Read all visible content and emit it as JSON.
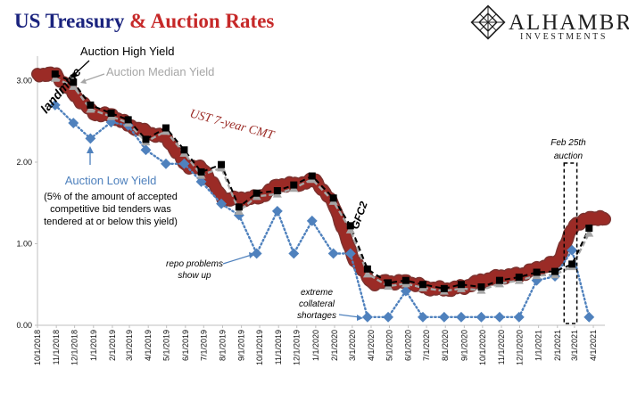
{
  "title": {
    "part1": "US Treasury ",
    "part2": "& Auction Rates",
    "color1": "#1a237e",
    "color2": "#c62828"
  },
  "logo": {
    "name": "ALHAMBRA",
    "sub": "INVESTMENTS"
  },
  "colors": {
    "cmt": "#9b2b26",
    "cmt_edge": "#6e1c18",
    "high": "#000000",
    "median": "#a6a6a6",
    "low": "#4f81bd",
    "low_text": "#4f81bd"
  },
  "annotations": {
    "auction_high": "Auction High Yield",
    "auction_median": "Auction Median Yield",
    "auction_low": "Auction Low Yield",
    "low_note_1": "(5% of the amount of accepted",
    "low_note_2": "competitive bid tenders was",
    "low_note_3": "tendered at or below this yield)",
    "ust": "UST 7-year CMT",
    "landmine": "landmine",
    "gfc2": "GFC2",
    "repo_1": "repo problems",
    "repo_2": "show up",
    "coll_1": "extreme",
    "coll_2": "collateral",
    "coll_3": "shortages",
    "feb_1": "Feb 25th",
    "feb_2": "auction"
  },
  "chart_data": {
    "type": "line",
    "ylim": [
      0,
      3.3
    ],
    "yticks": [
      "0.00",
      "1.00",
      "2.00",
      "3.00"
    ],
    "xlim": [
      "2018-10-01",
      "2021-04-20"
    ],
    "xticks": [
      "10/1/2018",
      "11/1/2018",
      "12/1/2018",
      "1/1/2019",
      "2/1/2019",
      "3/1/2019",
      "4/1/2019",
      "5/1/2019",
      "6/1/2019",
      "7/1/2019",
      "8/1/2019",
      "9/1/2019",
      "10/1/2019",
      "11/1/2019",
      "12/1/2019",
      "1/1/2020",
      "2/1/2020",
      "3/1/2020",
      "4/1/2020",
      "5/1/2020",
      "6/1/2020",
      "7/1/2020",
      "8/1/2020",
      "9/1/2020",
      "10/1/2020",
      "11/1/2020",
      "12/1/2020",
      "1/1/2021",
      "2/1/2021",
      "3/1/2021",
      "4/1/2021"
    ],
    "auctions": {
      "dates": [
        "2018-10-30",
        "2018-11-29",
        "2018-12-27",
        "2019-01-30",
        "2019-02-27",
        "2019-03-28",
        "2019-04-30",
        "2019-05-30",
        "2019-06-27",
        "2019-07-30",
        "2019-08-28",
        "2019-09-26",
        "2019-10-30",
        "2019-11-26",
        "2019-12-26",
        "2020-01-30",
        "2020-02-27",
        "2020-03-26",
        "2020-04-29",
        "2020-05-28",
        "2020-06-25",
        "2020-07-30",
        "2020-08-27",
        "2020-09-29",
        "2020-10-29",
        "2020-11-30",
        "2020-12-29",
        "2021-01-28",
        "2021-02-25",
        "2021-03-25"
      ],
      "series": [
        {
          "name": "Auction High Yield",
          "values": [
            3.08,
            2.98,
            2.7,
            2.6,
            2.52,
            2.28,
            2.42,
            2.15,
            1.88,
            1.97,
            1.45,
            1.62,
            1.65,
            1.72,
            1.83,
            1.56,
            1.22,
            0.69,
            0.52,
            0.55,
            0.5,
            0.45,
            0.5,
            0.47,
            0.55,
            0.59,
            0.65,
            0.66,
            0.75,
            1.19
          ]
        },
        {
          "name": "Auction Median Yield",
          "values": [
            3.03,
            2.93,
            2.65,
            2.56,
            2.48,
            2.25,
            2.38,
            2.11,
            1.84,
            1.93,
            1.4,
            1.58,
            1.61,
            1.68,
            1.79,
            1.52,
            1.17,
            0.63,
            0.48,
            0.51,
            0.46,
            0.42,
            0.45,
            0.43,
            0.51,
            0.55,
            0.61,
            0.62,
            0.72,
            1.13
          ]
        },
        {
          "name": "Auction Low Yield",
          "values": [
            2.7,
            2.48,
            2.29,
            2.49,
            2.45,
            2.15,
            1.98,
            1.98,
            1.76,
            1.49,
            1.35,
            0.88,
            1.4,
            0.88,
            1.28,
            0.88,
            0.88,
            0.1,
            0.1,
            0.42,
            0.1,
            0.1,
            0.1,
            0.1,
            0.1,
            0.1,
            0.55,
            0.6,
            0.92,
            0.1
          ]
        }
      ]
    },
    "cmt": {
      "name": "UST 7-year CMT",
      "dates": [
        "2018-10-01",
        "2018-11-01",
        "2018-12-01",
        "2019-01-01",
        "2019-02-01",
        "2019-03-01",
        "2019-04-01",
        "2019-05-01",
        "2019-06-01",
        "2019-07-01",
        "2019-08-01",
        "2019-09-01",
        "2019-10-01",
        "2019-11-01",
        "2019-12-01",
        "2020-01-01",
        "2020-02-01",
        "2020-03-01",
        "2020-04-01",
        "2020-05-01",
        "2020-06-01",
        "2020-07-01",
        "2020-08-01",
        "2020-09-01",
        "2020-10-01",
        "2020-11-01",
        "2020-12-01",
        "2021-01-01",
        "2021-02-01",
        "2021-03-01",
        "2021-04-01",
        "2021-04-20"
      ],
      "values": [
        3.08,
        3.07,
        2.82,
        2.6,
        2.57,
        2.45,
        2.36,
        2.3,
        1.96,
        1.92,
        1.55,
        1.55,
        1.57,
        1.72,
        1.73,
        1.78,
        1.46,
        0.85,
        0.52,
        0.53,
        0.53,
        0.46,
        0.44,
        0.47,
        0.55,
        0.6,
        0.62,
        0.7,
        0.78,
        1.24,
        1.32,
        1.3
      ]
    },
    "feb25_box": [
      "2021-02-12",
      "2021-03-05"
    ]
  }
}
